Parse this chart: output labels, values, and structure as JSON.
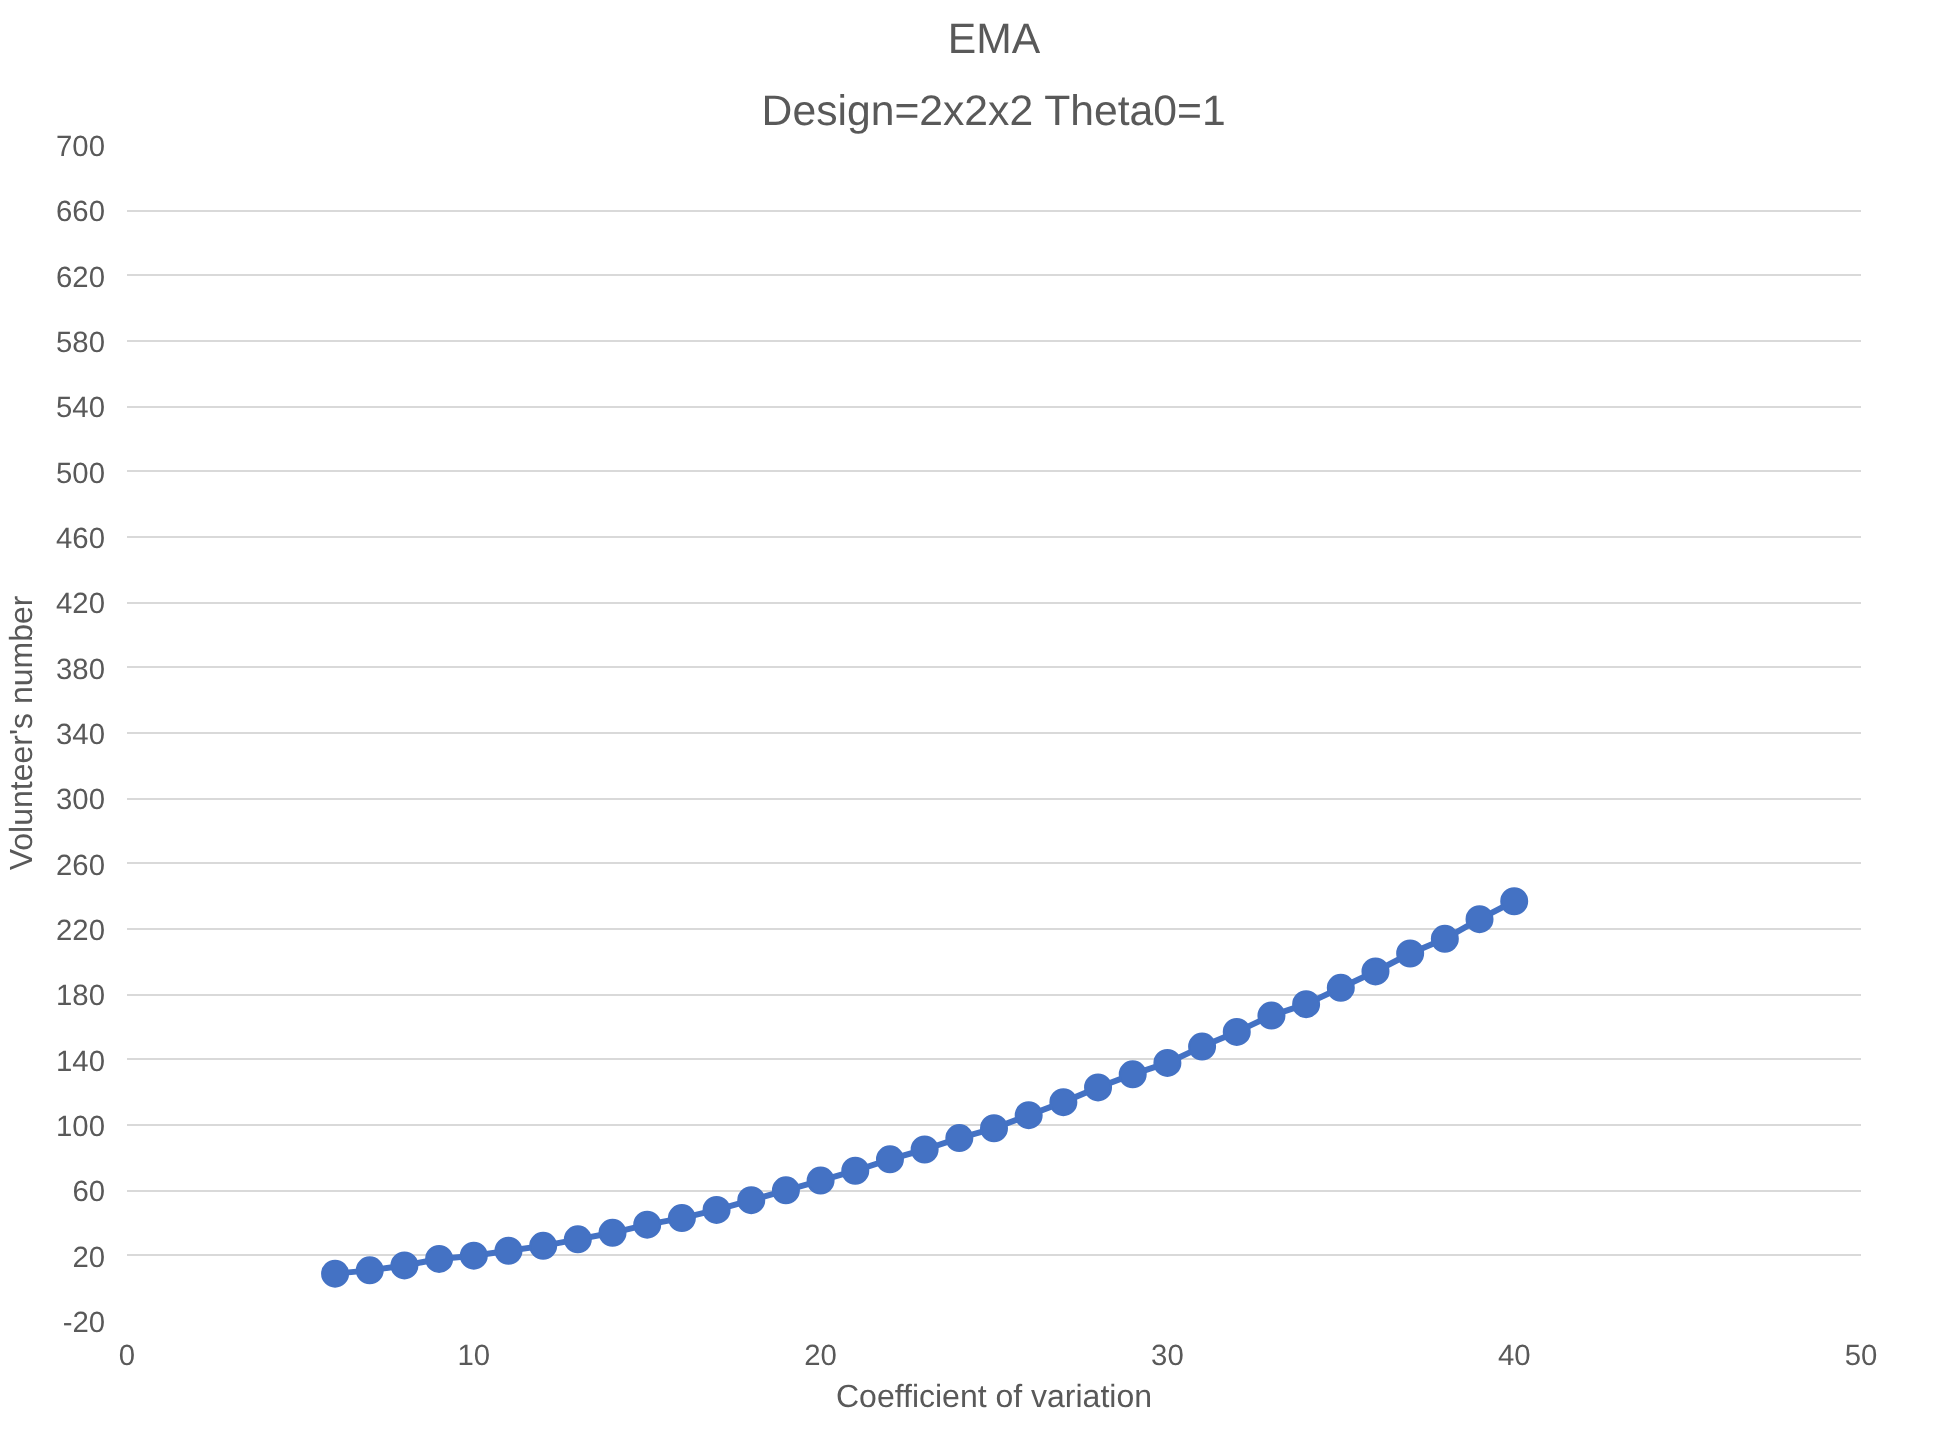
{
  "chart_data": {
    "type": "line",
    "title": "EMA",
    "subtitle": "Design=2x2x2 Theta0=1",
    "xlabel": "Coefficient of variation",
    "ylabel": "Volunteer's number",
    "x": [
      6,
      7,
      8,
      9,
      10,
      11,
      12,
      13,
      14,
      15,
      16,
      17,
      18,
      19,
      20,
      21,
      22,
      23,
      24,
      25,
      26,
      27,
      28,
      29,
      30,
      31,
      32,
      33,
      34,
      35,
      36,
      37,
      38,
      39,
      40
    ],
    "series": [
      {
        "color": "#4472c4",
        "values": [
          9,
          11,
          14,
          18,
          20,
          23,
          26,
          30,
          34,
          39,
          43,
          48,
          54,
          60,
          66,
          72,
          79,
          85,
          92,
          98,
          106,
          114,
          123,
          131,
          138,
          148,
          157,
          167,
          174,
          184,
          194,
          205,
          214,
          226,
          237
        ]
      }
    ],
    "xlim": [
      0,
      50
    ],
    "xticks": [
      0,
      10,
      20,
      30,
      40,
      50
    ],
    "ylim": [
      -20,
      700
    ],
    "yticks": [
      -20,
      20,
      60,
      100,
      140,
      180,
      220,
      260,
      300,
      340,
      380,
      420,
      460,
      500,
      540,
      580,
      620,
      660,
      700
    ],
    "grid": "y",
    "marker": "circle",
    "line_style": "solid"
  }
}
